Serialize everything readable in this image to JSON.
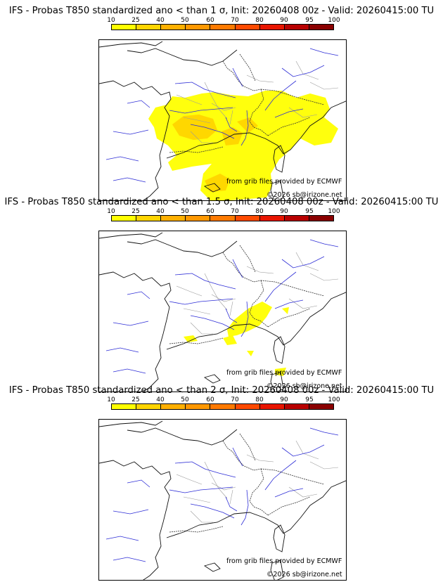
{
  "scale": {
    "ticks": [
      "10",
      "25",
      "40",
      "50",
      "60",
      "70",
      "80",
      "90",
      "95",
      "100"
    ],
    "colors": [
      "#ffff00",
      "#ffd500",
      "#ffb000",
      "#ff9800",
      "#ff7a00",
      "#ff4a00",
      "#e81500",
      "#b80000",
      "#8a0000"
    ]
  },
  "panels": [
    {
      "title": "IFS - Probas T850  standardized ano < than 1 σ, Init: 20260408 00z - Valid: 20260415:00 TU",
      "credit_source": "from grib files provided by ECMWF",
      "credit_site": "©2026 sb@irizone.net",
      "coverage": "wide"
    },
    {
      "title": "IFS - Probas T850  standardized ano < than 1.5 σ, Init: 20260408 00z - Valid: 20260415:00 TU",
      "credit_source": "from grib files provided by ECMWF",
      "credit_site": "©2026 sb@irizone.net",
      "coverage": "small"
    },
    {
      "title": "IFS - Probas T850  standardized ano < than 2 σ, Init: 20260408 00z - Valid: 20260415:00 TU",
      "credit_source": "from grib files provided by ECMWF",
      "credit_site": "©2026 sb@irizone.net",
      "coverage": "none"
    }
  ]
}
